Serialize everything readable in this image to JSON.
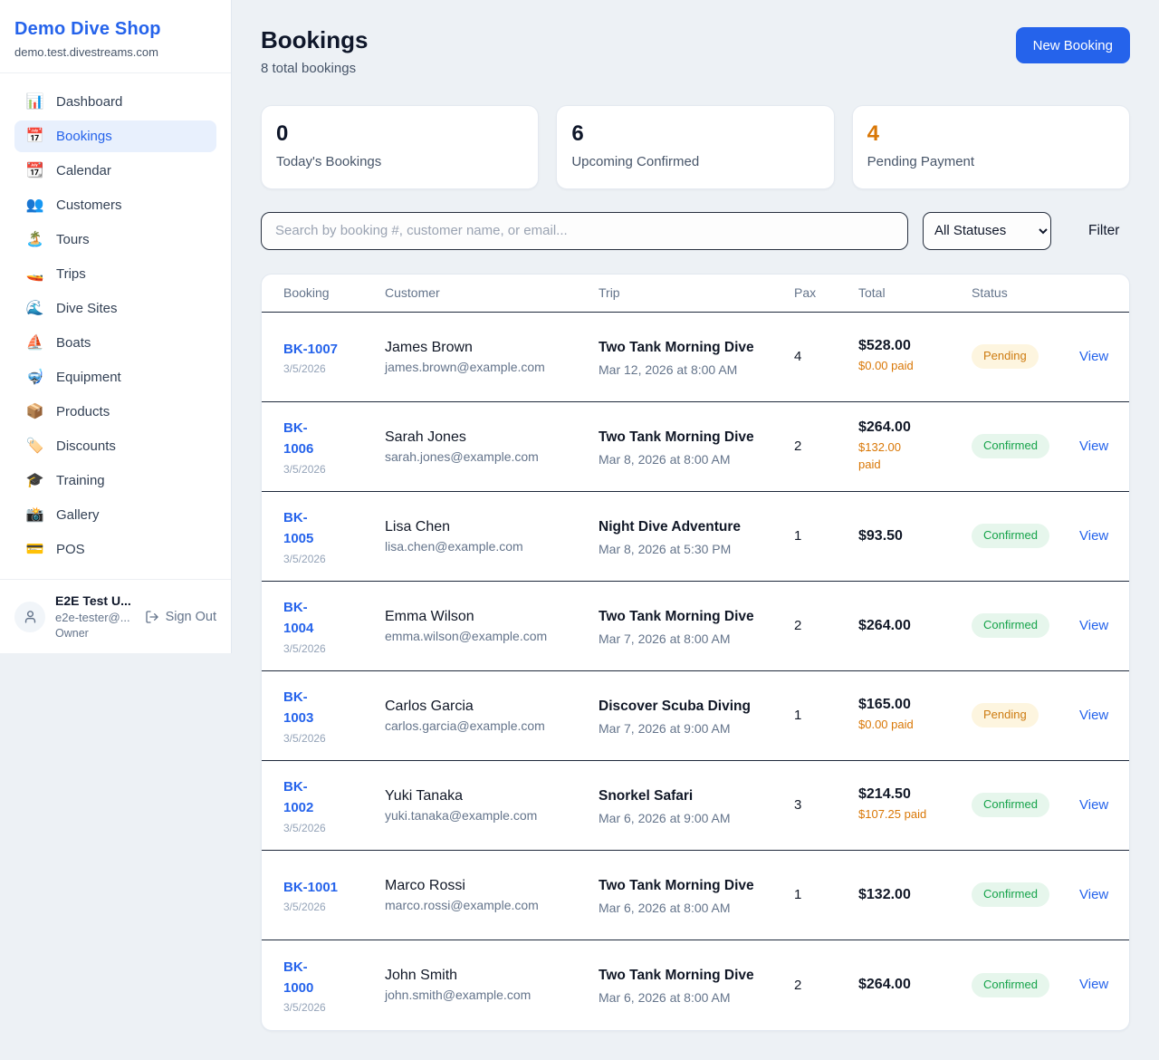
{
  "colors": {
    "accent_blue": "#2563eb",
    "warning_orange": "#d97706",
    "success_green": "#16a34a",
    "pending_badge_bg": "#fdf5df",
    "confirmed_badge_bg": "#e6f6ec"
  },
  "sidebar": {
    "brand": "Demo Dive Shop",
    "domain": "demo.test.divestreams.com",
    "items": [
      {
        "icon": "📊",
        "icon_name": "bar-chart-icon",
        "label": "Dashboard",
        "active": false
      },
      {
        "icon": "📅",
        "icon_name": "calendar-icon",
        "label": "Bookings",
        "active": true
      },
      {
        "icon": "📆",
        "icon_name": "tear-off-calendar-icon",
        "label": "Calendar",
        "active": false
      },
      {
        "icon": "👥",
        "icon_name": "people-icon",
        "label": "Customers",
        "active": false
      },
      {
        "icon": "🏝️",
        "icon_name": "island-icon",
        "label": "Tours",
        "active": false
      },
      {
        "icon": "🚤",
        "icon_name": "speedboat-icon",
        "label": "Trips",
        "active": false
      },
      {
        "icon": "🌊",
        "icon_name": "wave-icon",
        "label": "Dive Sites",
        "active": false
      },
      {
        "icon": "⛵",
        "icon_name": "sailboat-icon",
        "label": "Boats",
        "active": false
      },
      {
        "icon": "🤿",
        "icon_name": "diving-mask-icon",
        "label": "Equipment",
        "active": false
      },
      {
        "icon": "📦",
        "icon_name": "package-icon",
        "label": "Products",
        "active": false
      },
      {
        "icon": "🏷️",
        "icon_name": "tag-icon",
        "label": "Discounts",
        "active": false
      },
      {
        "icon": "🎓",
        "icon_name": "graduation-cap-icon",
        "label": "Training",
        "active": false
      },
      {
        "icon": "📸",
        "icon_name": "camera-icon",
        "label": "Gallery",
        "active": false
      },
      {
        "icon": "💳",
        "icon_name": "credit-card-icon",
        "label": "POS",
        "active": false
      }
    ],
    "user": {
      "name": "E2E Test U...",
      "email": "e2e-tester@...",
      "role": "Owner",
      "sign_out": "Sign Out"
    }
  },
  "header": {
    "title": "Bookings",
    "subtitle": "8 total bookings",
    "new_booking": "New Booking"
  },
  "stats": [
    {
      "value": "0",
      "label": "Today's Bookings",
      "highlight": false
    },
    {
      "value": "6",
      "label": "Upcoming Confirmed",
      "highlight": false
    },
    {
      "value": "4",
      "label": "Pending Payment",
      "highlight": true
    }
  ],
  "filters": {
    "search_placeholder": "Search by booking #, customer name, or email...",
    "status_select": "All Statuses",
    "filter_label": "Filter"
  },
  "table": {
    "headers": [
      "Booking",
      "Customer",
      "Trip",
      "Pax",
      "Total",
      "Status"
    ],
    "rows": [
      {
        "id": "BK-1007",
        "id_wrap": false,
        "date": "3/5/2026",
        "customer": "James Brown",
        "email": "james.brown@example.com",
        "trip": "Two Tank Morning Dive",
        "trip_time": "Mar 12, 2026 at 8:00 AM",
        "pax": "4",
        "total": "$528.00",
        "paid": "$0.00 paid",
        "paid_wrap": false,
        "status": "Pending",
        "action": "View"
      },
      {
        "id": "BK-1006",
        "id_wrap": true,
        "date": "3/5/2026",
        "customer": "Sarah Jones",
        "email": "sarah.jones@example.com",
        "trip": "Two Tank Morning Dive",
        "trip_time": "Mar 8, 2026 at 8:00 AM",
        "pax": "2",
        "total": "$264.00",
        "paid": "$132.00 paid",
        "paid_wrap": true,
        "status": "Confirmed",
        "action": "View"
      },
      {
        "id": "BK-1005",
        "id_wrap": true,
        "date": "3/5/2026",
        "customer": "Lisa Chen",
        "email": "lisa.chen@example.com",
        "trip": "Night Dive Adventure",
        "trip_time": "Mar 8, 2026 at 5:30 PM",
        "pax": "1",
        "total": "$93.50",
        "paid": null,
        "paid_wrap": false,
        "status": "Confirmed",
        "action": "View"
      },
      {
        "id": "BK-1004",
        "id_wrap": true,
        "date": "3/5/2026",
        "customer": "Emma Wilson",
        "email": "emma.wilson@example.com",
        "trip": "Two Tank Morning Dive",
        "trip_time": "Mar 7, 2026 at 8:00 AM",
        "pax": "2",
        "total": "$264.00",
        "paid": null,
        "paid_wrap": false,
        "status": "Confirmed",
        "action": "View"
      },
      {
        "id": "BK-1003",
        "id_wrap": true,
        "date": "3/5/2026",
        "customer": "Carlos Garcia",
        "email": "carlos.garcia@example.com",
        "trip": "Discover Scuba Diving",
        "trip_time": "Mar 7, 2026 at 9:00 AM",
        "pax": "1",
        "total": "$165.00",
        "paid": "$0.00 paid",
        "paid_wrap": false,
        "status": "Pending",
        "action": "View"
      },
      {
        "id": "BK-1002",
        "id_wrap": true,
        "date": "3/5/2026",
        "customer": "Yuki Tanaka",
        "email": "yuki.tanaka@example.com",
        "trip": "Snorkel Safari",
        "trip_time": "Mar 6, 2026 at 9:00 AM",
        "pax": "3",
        "total": "$214.50",
        "paid": "$107.25 paid",
        "paid_wrap": false,
        "status": "Confirmed",
        "action": "View"
      },
      {
        "id": "BK-1001",
        "id_wrap": false,
        "date": "3/5/2026",
        "customer": "Marco Rossi",
        "email": "marco.rossi@example.com",
        "trip": "Two Tank Morning Dive",
        "trip_time": "Mar 6, 2026 at 8:00 AM",
        "pax": "1",
        "total": "$132.00",
        "paid": null,
        "paid_wrap": false,
        "status": "Confirmed",
        "action": "View"
      },
      {
        "id": "BK-1000",
        "id_wrap": true,
        "date": "3/5/2026",
        "customer": "John Smith",
        "email": "john.smith@example.com",
        "trip": "Two Tank Morning Dive",
        "trip_time": "Mar 6, 2026 at 8:00 AM",
        "pax": "2",
        "total": "$264.00",
        "paid": null,
        "paid_wrap": false,
        "status": "Confirmed",
        "action": "View"
      }
    ]
  }
}
